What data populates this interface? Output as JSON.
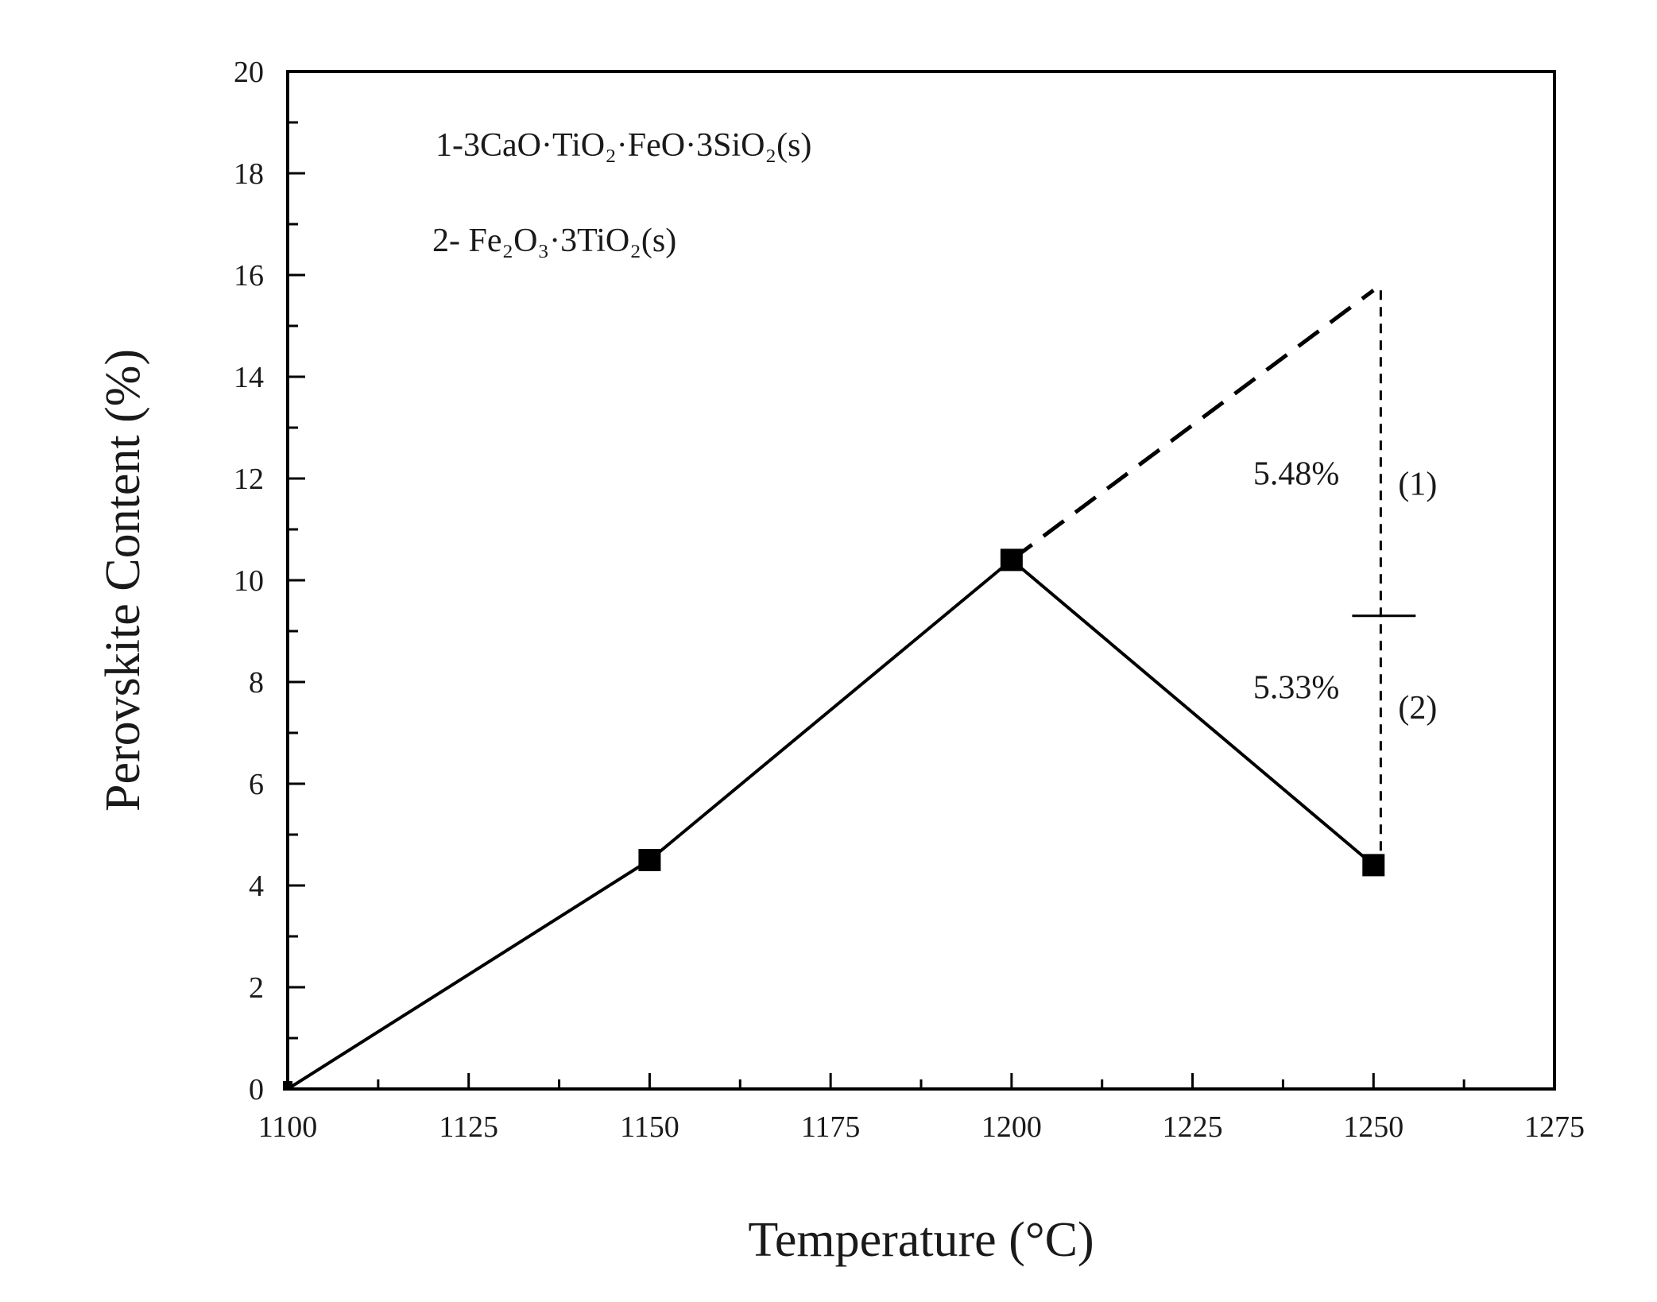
{
  "chart_data": {
    "type": "line",
    "title": "",
    "xlabel": "Temperature (°C)",
    "ylabel": "Perovskite Content (%)",
    "xlim": [
      1100,
      1275
    ],
    "ylim": [
      0,
      20
    ],
    "x_ticks": [
      "1100",
      "1125",
      "1150",
      "1175",
      "1200",
      "1225",
      "1250",
      "1275"
    ],
    "y_ticks": [
      "0",
      "2",
      "4",
      "6",
      "8",
      "10",
      "12",
      "14",
      "16",
      "18",
      "20"
    ],
    "grid": false,
    "series": [
      {
        "style": "solid",
        "marker": "square",
        "x": [
          1100,
          1150,
          1200,
          1250
        ],
        "y": [
          0,
          4.5,
          10.4,
          4.4
        ]
      },
      {
        "style": "dashed",
        "marker": "none",
        "x": [
          1200,
          1250
        ],
        "y": [
          10.4,
          15.7
        ]
      }
    ],
    "legend_text": {
      "line1": "1-3CaO·TiO₂·FeO·3SiO₂(s)",
      "line2": "2- Fe₂O₃·3TiO₂(s)"
    },
    "annotations": {
      "top_value": "5.48%",
      "top_label": "(1)",
      "bottom_value": "5.33%",
      "bottom_label": "(2)",
      "split_y": 9.3,
      "top_y": 15.7,
      "bottom_y": 4.4,
      "x": 1251
    }
  },
  "colors": {
    "line": "#000000",
    "text": "#1a1a1a",
    "background": "#ffffff"
  }
}
